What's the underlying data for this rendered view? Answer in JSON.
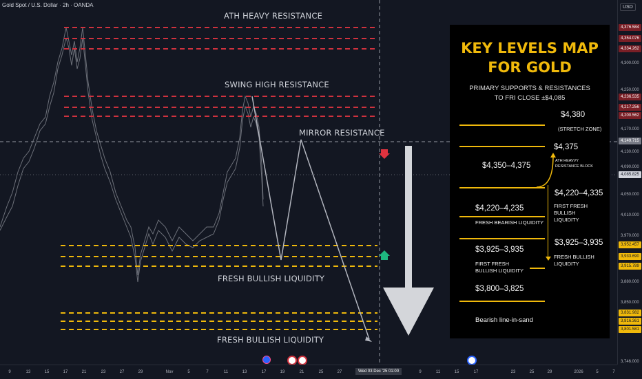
{
  "header": {
    "title": "Gold Spot / U.S. Dollar · 2h · OANDA",
    "currency": "USD"
  },
  "price_axis": {
    "labels": [
      "4,300.000",
      "4,250.000",
      "4,170.000",
      "4,130.000",
      "4,090.000",
      "4,050.000",
      "4,010.000",
      "3,970.000",
      "3,880.000",
      "3,850.000",
      "3,746.000"
    ],
    "tags": [
      {
        "value": "4,376.584",
        "style": "red"
      },
      {
        "value": "4,354.076",
        "style": "red"
      },
      {
        "value": "4,334.262",
        "style": "red"
      },
      {
        "value": "4,236.535",
        "style": "red"
      },
      {
        "value": "4,217.256",
        "style": "red"
      },
      {
        "value": "4,200.562",
        "style": "red"
      },
      {
        "value": "4,149.715",
        "style": "gray"
      },
      {
        "value": "4,085.825",
        "style": "white"
      },
      {
        "value": "3,952.457",
        "style": "yellow"
      },
      {
        "value": "3,933.690",
        "style": "yellow"
      },
      {
        "value": "3,915.789",
        "style": "yellow"
      },
      {
        "value": "3,831.982",
        "style": "yellow"
      },
      {
        "value": "3,816.361",
        "style": "yellow"
      },
      {
        "value": "3,801.581",
        "style": "yellow"
      }
    ]
  },
  "time_axis": {
    "labels": [
      "9",
      "13",
      "15",
      "17",
      "21",
      "23",
      "27",
      "29",
      "Nov",
      "5",
      "7",
      "11",
      "13",
      "17",
      "19",
      "21",
      "25",
      "27",
      "9",
      "11",
      "15",
      "17",
      "23",
      "25",
      "29",
      "2026",
      "5",
      "7"
    ],
    "cursor": "Wed 03 Dec '25   01:00"
  },
  "annotations": {
    "ath": "ATH HEAVY RESISTANCE",
    "swing": "SWING HIGH RESISTANCE",
    "mirror": "MIRROR RESISTANCE",
    "fresh1": "FRESH BULLISH LIQUIDITY",
    "fresh2": "FRESH BULLISH LIQUIDITY"
  },
  "panel": {
    "title1": "KEY LEVELS MAP",
    "title2": "FOR GOLD",
    "sub1": "PRIMARY SUPPORTS & RESISTANCES",
    "sub2": "TO FRI CLOSE ±$4,085",
    "p4380": "$4,380",
    "stretch": "(STRETCH ZONE)",
    "p4375": "$4,375",
    "ath_block1": "ATH HEAVVY",
    "ath_block2": "RESISTANCE   BLOCK",
    "z4350": "$4,350–4,375",
    "z4220b": "$4,220–4,335",
    "first_fresh1": "FIRST FRESH",
    "first_fresh2": "BULLISH",
    "first_fresh3": "LIQUIDITY",
    "z4220a": "$4,220–4,235",
    "fresh_bearish": "FRESH BEARISH LIQUIDITY",
    "z3925a": "$3,925–3,935",
    "ff_b1": "FIRST FRESH",
    "ff_b2": "BULLISH LIQUIDITY",
    "z3925b": "$3,925–3,935",
    "fb1": "FRESH BULLISH",
    "fb2": "LIQUIDITY",
    "z3800": "$3,800–3,825",
    "sand": "Bearish line-in-sand"
  },
  "colors": {
    "background": "#131722",
    "resistance": "#d0323e",
    "support": "#f0b90b",
    "panel_accent": "#f0b90b"
  }
}
